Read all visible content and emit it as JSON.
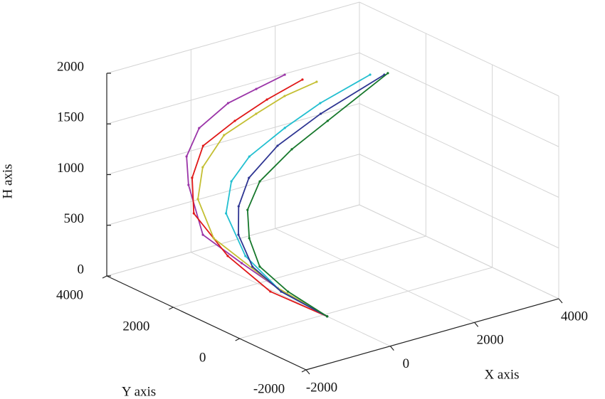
{
  "chart_data": {
    "type": "line3d",
    "xlabel": "X axis",
    "ylabel": "Y axis",
    "zlabel": "H axis",
    "xlim": [
      -2000,
      4000
    ],
    "xticks": [
      -2000,
      0,
      2000,
      4000
    ],
    "ylim": [
      -2000,
      4000
    ],
    "yticks": [
      -2000,
      0,
      2000,
      4000
    ],
    "zlim": [
      0,
      2000
    ],
    "zticks": [
      0,
      500,
      1000,
      1500,
      2000
    ],
    "grid": true,
    "series": [
      {
        "color": "#9b35a8",
        "x": [
          0,
          -480,
          -870,
          -1350,
          -950,
          -720,
          -280,
          140,
          430,
          760
        ],
        "y": [
          -100,
          780,
          1370,
          1930,
          2870,
          3220,
          3400,
          3060,
          2580,
          2140
        ],
        "h": [
          0,
          200,
          400,
          650,
          950,
          1150,
          1350,
          1600,
          1780,
          1950
        ]
      },
      {
        "color": "#e01818",
        "x": [
          0,
          -860,
          -1170,
          -1290,
          -990,
          -620,
          0,
          510,
          1030
        ],
        "y": [
          -100,
          520,
          1410,
          2280,
          2710,
          2850,
          2680,
          2360,
          1950
        ],
        "h": [
          0,
          250,
          500,
          800,
          1050,
          1300,
          1500,
          1700,
          1900
        ]
      },
      {
        "color": "#c4bf33",
        "x": [
          0,
          -640,
          -1140,
          -940,
          -660,
          -130,
          380,
          820,
          1170
        ],
        "y": [
          -100,
          580,
          1870,
          2600,
          2810,
          2840,
          2520,
          2220,
          1700
        ],
        "h": [
          0,
          250,
          600,
          850,
          1100,
          1350,
          1550,
          1720,
          1900
        ]
      },
      {
        "color": "#22bfd0",
        "x": [
          0,
          -540,
          -750,
          -650,
          -200,
          210,
          840,
          1350,
          2030
        ],
        "y": [
          -100,
          600,
          1410,
          2120,
          2530,
          2510,
          2240,
          1820,
          1180
        ],
        "h": [
          0,
          200,
          450,
          750,
          950,
          1150,
          1400,
          1650,
          1950
        ]
      },
      {
        "color": "#2e3592",
        "x": [
          0,
          -540,
          -820,
          -980,
          -880,
          -470,
          170,
          1020,
          2240
        ],
        "y": [
          -100,
          600,
          1110,
          1330,
          1450,
          1660,
          1610,
          1390,
          1020
        ],
        "h": [
          0,
          200,
          400,
          700,
          950,
          1150,
          1400,
          1650,
          1950
        ]
      },
      {
        "color": "#17782c",
        "x": [
          0,
          -440,
          -710,
          -770,
          -700,
          -260,
          430,
          1060,
          2340
        ],
        "y": [
          -100,
          520,
          1030,
          1270,
          1410,
          1600,
          1510,
          1230,
          1040
        ],
        "h": [
          0,
          200,
          400,
          650,
          900,
          1100,
          1350,
          1600,
          1950
        ]
      }
    ]
  }
}
